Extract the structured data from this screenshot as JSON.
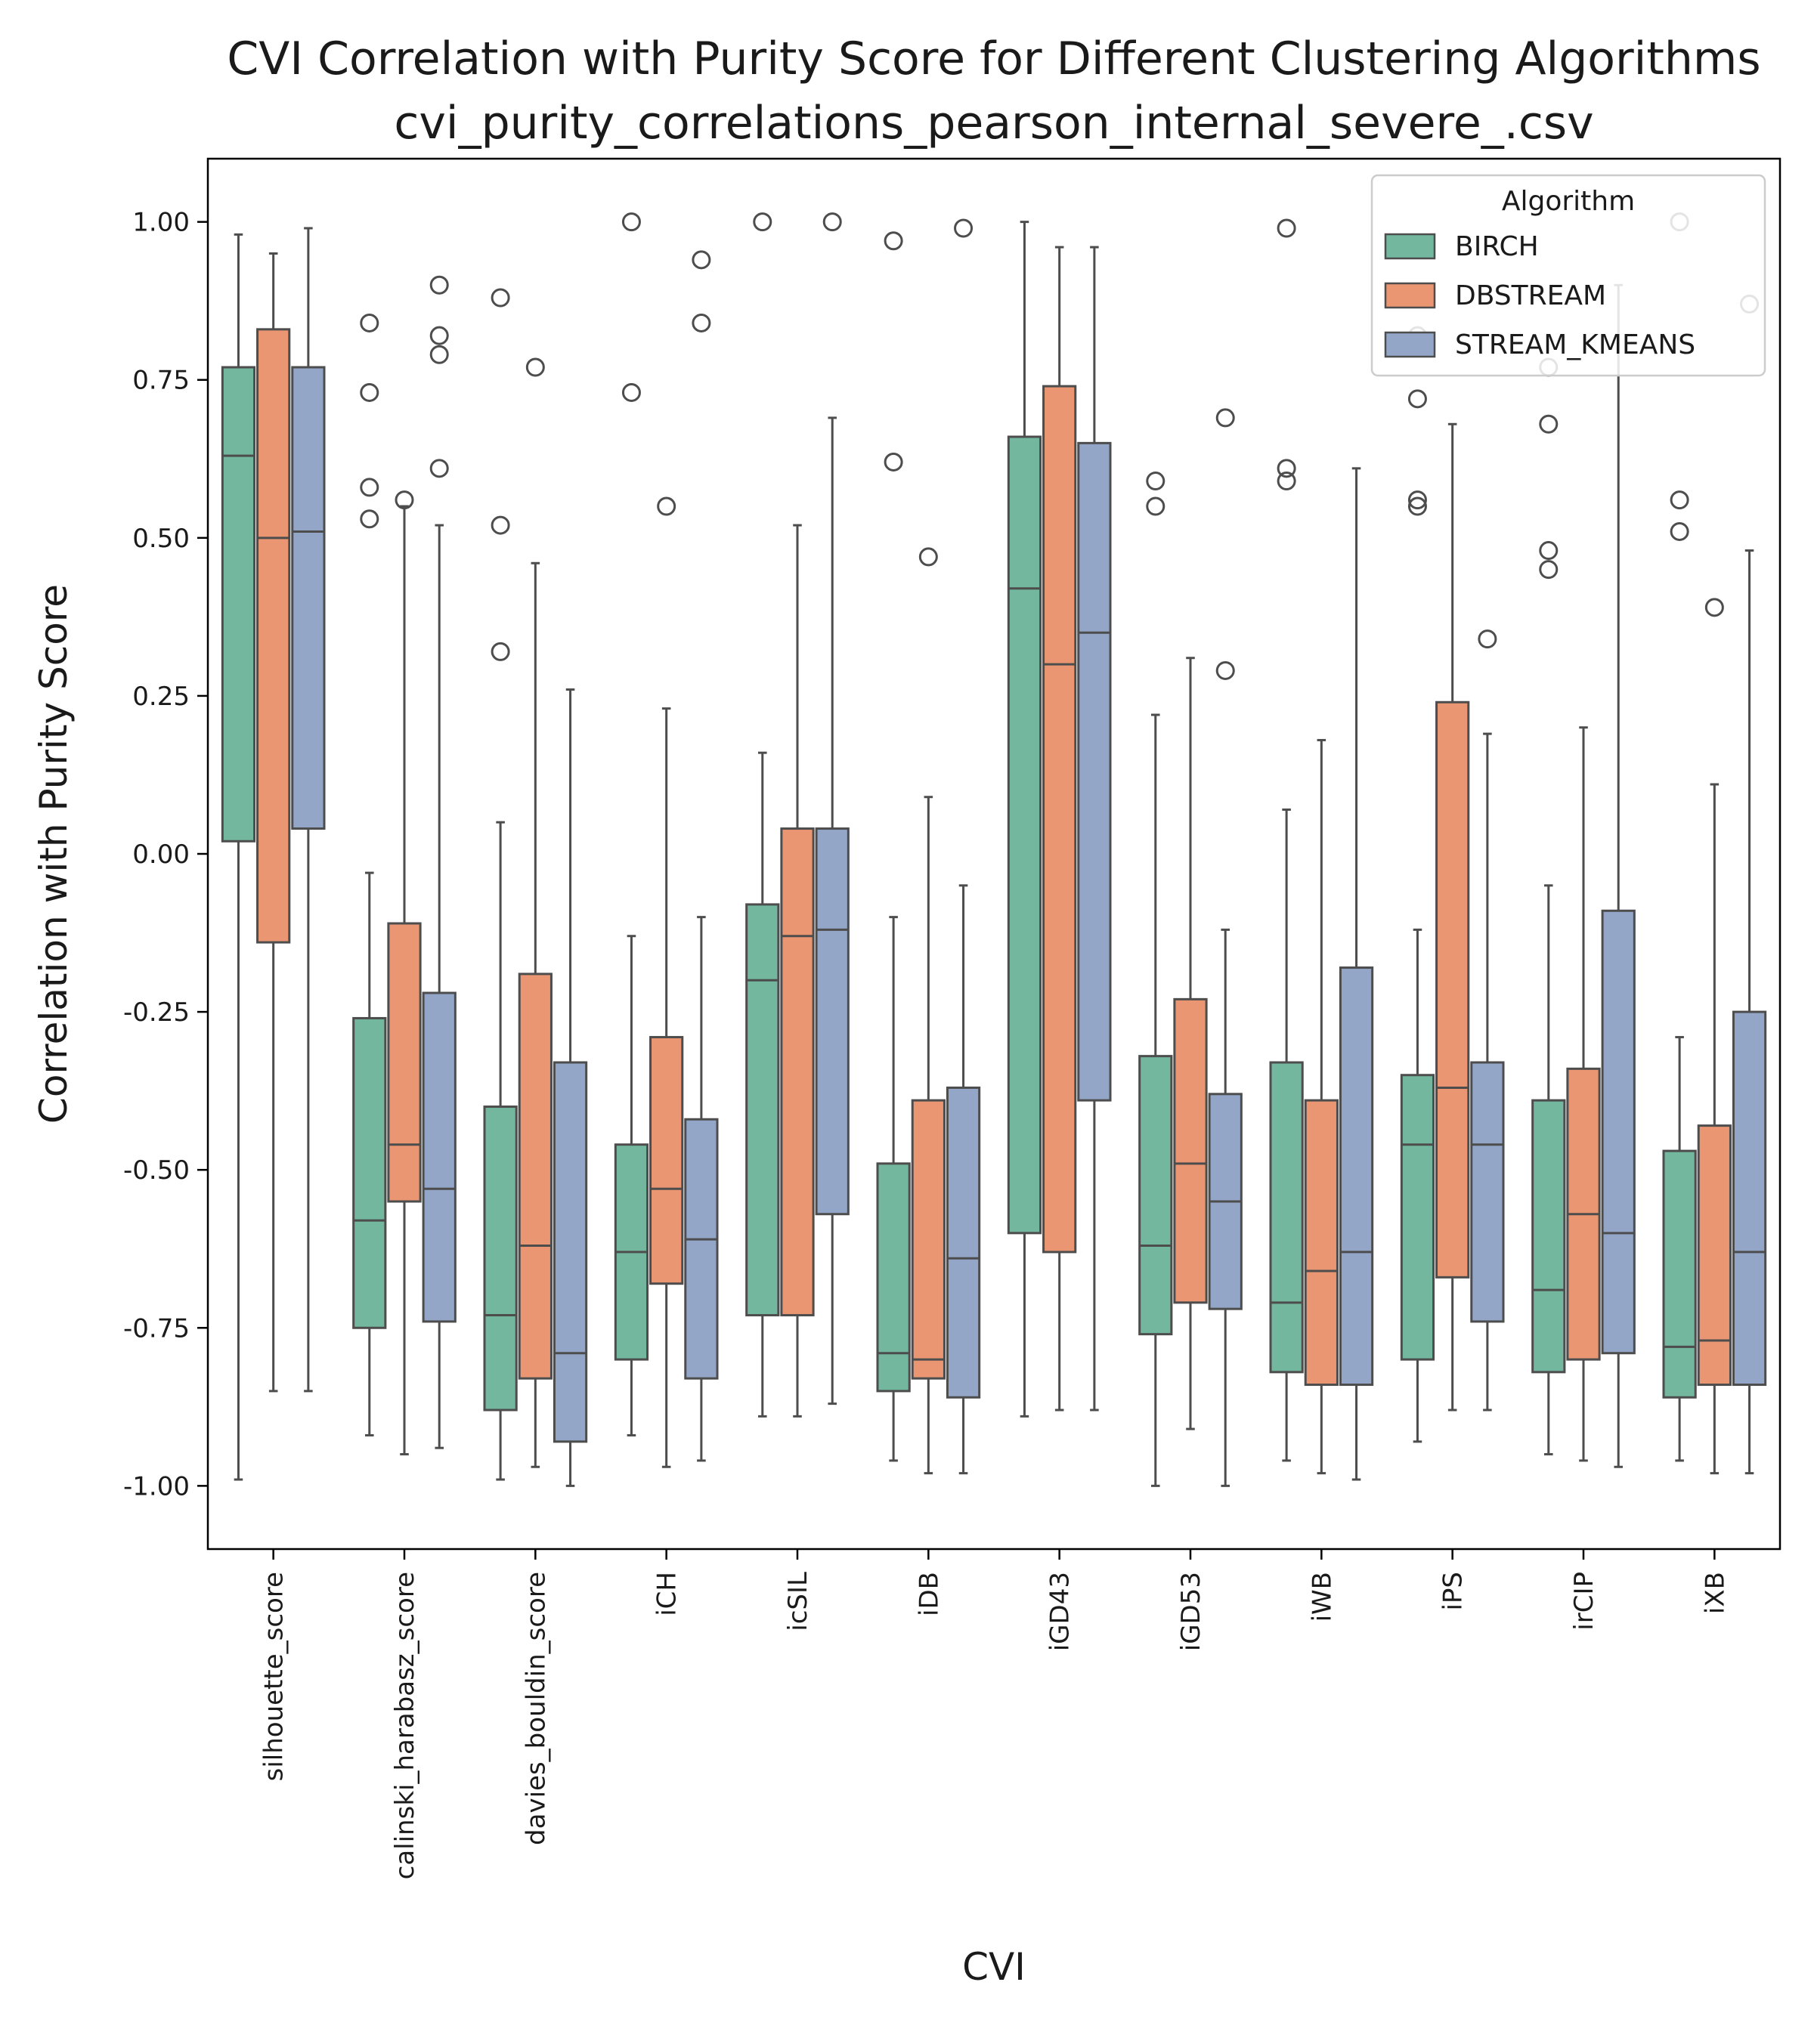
{
  "chart_data": {
    "type": "boxplot",
    "title_line1": "CVI Correlation with Purity Score for Different Clustering Algorithms",
    "title_line2": "cvi_purity_correlations_pearson_internal_severe_.csv",
    "xlabel": "CVI",
    "ylabel": "Correlation with Purity Score",
    "ylim": [
      -1.1,
      1.1
    ],
    "yticks": [
      "-1.00",
      "-0.75",
      "-0.50",
      "-0.25",
      "0.00",
      "0.25",
      "0.50",
      "0.75",
      "1.00"
    ],
    "categories": [
      "silhouette_score",
      "calinski_harabasz_score",
      "davies_bouldin_score",
      "iCH",
      "icSIL",
      "iDB",
      "iGD43",
      "iGD53",
      "iWB",
      "iPS",
      "irCIP",
      "iXB"
    ],
    "legend": {
      "title": "Algorithm",
      "placement": "top-right"
    },
    "series": [
      {
        "name": "BIRCH",
        "color": "#72b79e",
        "boxes": [
          {
            "wlo": -0.99,
            "q1": 0.02,
            "med": 0.63,
            "q3": 0.77,
            "whi": 0.98,
            "out": []
          },
          {
            "wlo": -0.92,
            "q1": -0.75,
            "med": -0.58,
            "q3": -0.26,
            "whi": -0.03,
            "out": [
              0.53,
              0.58,
              0.73,
              0.84
            ]
          },
          {
            "wlo": -0.99,
            "q1": -0.88,
            "med": -0.73,
            "q3": -0.4,
            "whi": 0.05,
            "out": [
              0.32,
              0.52,
              0.88
            ]
          },
          {
            "wlo": -0.92,
            "q1": -0.8,
            "med": -0.63,
            "q3": -0.46,
            "whi": -0.13,
            "out": [
              0.73,
              1.0
            ]
          },
          {
            "wlo": -0.89,
            "q1": -0.73,
            "med": -0.2,
            "q3": -0.08,
            "whi": 0.16,
            "out": [
              1.0
            ]
          },
          {
            "wlo": -0.96,
            "q1": -0.85,
            "med": -0.79,
            "q3": -0.49,
            "whi": -0.1,
            "out": [
              0.62,
              0.97
            ]
          },
          {
            "wlo": -0.89,
            "q1": -0.6,
            "med": 0.42,
            "q3": 0.66,
            "whi": 1.0,
            "out": []
          },
          {
            "wlo": -1.0,
            "q1": -0.76,
            "med": -0.62,
            "q3": -0.32,
            "whi": 0.22,
            "out": [
              0.55,
              0.59
            ]
          },
          {
            "wlo": -0.96,
            "q1": -0.82,
            "med": -0.71,
            "q3": -0.33,
            "whi": 0.07,
            "out": [
              0.59,
              0.61,
              0.99
            ]
          },
          {
            "wlo": -0.93,
            "q1": -0.8,
            "med": -0.46,
            "q3": -0.35,
            "whi": -0.12,
            "out": [
              0.55,
              0.56,
              0.72,
              0.82
            ]
          },
          {
            "wlo": -0.95,
            "q1": -0.82,
            "med": -0.69,
            "q3": -0.39,
            "whi": -0.05,
            "out": [
              0.45,
              0.48,
              0.68,
              0.77
            ]
          },
          {
            "wlo": -0.96,
            "q1": -0.86,
            "med": -0.78,
            "q3": -0.47,
            "whi": -0.29,
            "out": [
              0.51,
              0.56,
              1.0
            ]
          }
        ]
      },
      {
        "name": "DBSTREAM",
        "color": "#ea9673",
        "boxes": [
          {
            "wlo": -0.85,
            "q1": -0.14,
            "med": 0.5,
            "q3": 0.83,
            "whi": 0.95,
            "out": []
          },
          {
            "wlo": -0.95,
            "q1": -0.55,
            "med": -0.46,
            "q3": -0.11,
            "whi": 0.55,
            "out": [
              0.56
            ]
          },
          {
            "wlo": -0.97,
            "q1": -0.83,
            "med": -0.62,
            "q3": -0.19,
            "whi": 0.46,
            "out": [
              0.77
            ]
          },
          {
            "wlo": -0.97,
            "q1": -0.68,
            "med": -0.53,
            "q3": -0.29,
            "whi": 0.23,
            "out": [
              0.55
            ]
          },
          {
            "wlo": -0.89,
            "q1": -0.73,
            "med": -0.13,
            "q3": 0.04,
            "whi": 0.52,
            "out": []
          },
          {
            "wlo": -0.98,
            "q1": -0.83,
            "med": -0.8,
            "q3": -0.39,
            "whi": 0.09,
            "out": [
              0.47
            ]
          },
          {
            "wlo": -0.88,
            "q1": -0.63,
            "med": 0.3,
            "q3": 0.74,
            "whi": 0.96,
            "out": []
          },
          {
            "wlo": -0.91,
            "q1": -0.71,
            "med": -0.49,
            "q3": -0.23,
            "whi": 0.31,
            "out": []
          },
          {
            "wlo": -0.98,
            "q1": -0.84,
            "med": -0.66,
            "q3": -0.39,
            "whi": 0.18,
            "out": []
          },
          {
            "wlo": -0.88,
            "q1": -0.67,
            "med": -0.37,
            "q3": 0.24,
            "whi": 0.68,
            "out": []
          },
          {
            "wlo": -0.96,
            "q1": -0.8,
            "med": -0.57,
            "q3": -0.34,
            "whi": 0.2,
            "out": []
          },
          {
            "wlo": -0.98,
            "q1": -0.84,
            "med": -0.77,
            "q3": -0.43,
            "whi": 0.11,
            "out": [
              0.39
            ]
          }
        ]
      },
      {
        "name": "STREAM_KMEANS",
        "color": "#93a6c8",
        "boxes": [
          {
            "wlo": -0.85,
            "q1": 0.04,
            "med": 0.51,
            "q3": 0.77,
            "whi": 0.99,
            "out": []
          },
          {
            "wlo": -0.94,
            "q1": -0.74,
            "med": -0.53,
            "q3": -0.22,
            "whi": 0.52,
            "out": [
              0.61,
              0.79,
              0.82,
              0.9
            ]
          },
          {
            "wlo": -1.0,
            "q1": -0.93,
            "med": -0.79,
            "q3": -0.33,
            "whi": 0.26,
            "out": []
          },
          {
            "wlo": -0.96,
            "q1": -0.83,
            "med": -0.61,
            "q3": -0.42,
            "whi": -0.1,
            "out": [
              0.84,
              0.94
            ]
          },
          {
            "wlo": -0.87,
            "q1": -0.57,
            "med": -0.12,
            "q3": 0.04,
            "whi": 0.69,
            "out": [
              1.0
            ]
          },
          {
            "wlo": -0.98,
            "q1": -0.86,
            "med": -0.64,
            "q3": -0.37,
            "whi": -0.05,
            "out": [
              0.99
            ]
          },
          {
            "wlo": -0.88,
            "q1": -0.39,
            "med": 0.35,
            "q3": 0.65,
            "whi": 0.96,
            "out": []
          },
          {
            "wlo": -1.0,
            "q1": -0.72,
            "med": -0.55,
            "q3": -0.38,
            "whi": -0.12,
            "out": [
              0.29,
              0.69
            ]
          },
          {
            "wlo": -0.99,
            "q1": -0.84,
            "med": -0.63,
            "q3": -0.18,
            "whi": 0.61,
            "out": []
          },
          {
            "wlo": -0.88,
            "q1": -0.74,
            "med": -0.46,
            "q3": -0.33,
            "whi": 0.19,
            "out": [
              0.34
            ]
          },
          {
            "wlo": -0.97,
            "q1": -0.79,
            "med": -0.6,
            "q3": -0.09,
            "whi": 0.9,
            "out": []
          },
          {
            "wlo": -0.98,
            "q1": -0.84,
            "med": -0.63,
            "q3": -0.25,
            "whi": 0.48,
            "out": [
              0.87
            ]
          }
        ]
      }
    ]
  }
}
